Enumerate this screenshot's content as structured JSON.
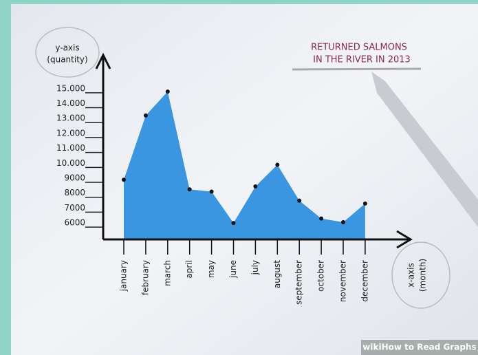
{
  "chart_data": {
    "type": "area",
    "title": [
      "RETURNED SALMONS",
      "IN THE RIVER IN 2013"
    ],
    "y_label": [
      "y-axis",
      "(quantity)"
    ],
    "x_label": [
      "x-axis",
      "(month)"
    ],
    "categories": [
      "january",
      "february",
      "march",
      "april",
      "may",
      "june",
      "july",
      "august",
      "september",
      "october",
      "november",
      "december"
    ],
    "values": [
      8900,
      13200,
      14800,
      8250,
      8100,
      6000,
      8450,
      9900,
      7500,
      6300,
      6050,
      7300
    ],
    "color": "#3b96e2",
    "ylim": [
      4900,
      17250
    ],
    "yticks": [
      6000,
      7000,
      8000,
      9000,
      {
        "value": 10000,
        "label": "10.000"
      },
      {
        "value": 11000,
        "label": "11.000"
      },
      {
        "value": 12000,
        "label": "12.000"
      },
      {
        "value": 13000,
        "label": "13.000"
      },
      {
        "value": 14000,
        "label": "14.000"
      },
      {
        "value": 15000,
        "label": "15.000"
      }
    ],
    "watermark": "wikiHow to Read Graphs"
  }
}
